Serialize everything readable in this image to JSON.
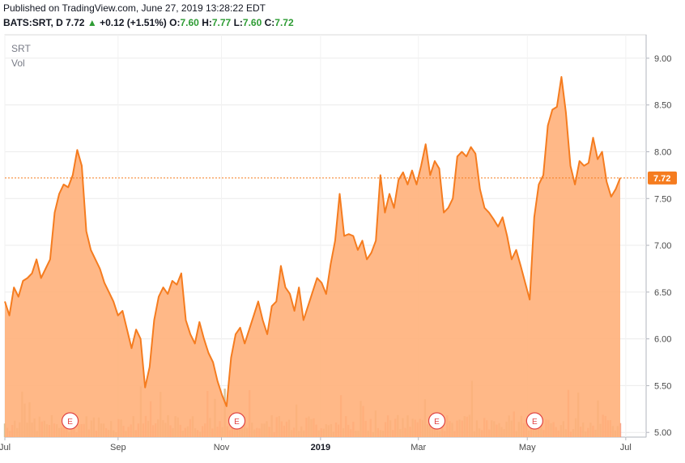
{
  "header": {
    "published": "Published on TradingView.com, June 27, 2019 13:28:22 EDT",
    "symbol": "BATS:SRT, D",
    "last": "7.72",
    "change": "+0.12 (+1.51%)",
    "o_label": "O:",
    "o": "7.60",
    "h_label": "H:",
    "h": "7.77",
    "l_label": "L:",
    "l": "7.60",
    "c_label": "C:",
    "c": "7.72"
  },
  "colors": {
    "line": "#f57c1f",
    "area": "#ffb07a",
    "up": "#2e9c34",
    "earnings": "#e04343",
    "vol_a": "#f6896b",
    "vol_b": "#c8b07c"
  },
  "chart_data": {
    "type": "area",
    "legend": [
      "SRT",
      "Vol"
    ],
    "last_value_label": "7.72",
    "last_value": 7.72,
    "ylim": [
      4.95,
      9.25
    ],
    "yticks": [
      "9.00",
      "8.50",
      "8.00",
      "7.50",
      "7.00",
      "6.50",
      "6.00",
      "5.50",
      "5.00"
    ],
    "yticks_values": [
      9.0,
      8.5,
      8.0,
      7.5,
      7.0,
      6.5,
      6.0,
      5.5,
      5.0
    ],
    "x_labels": [
      {
        "label": "Jul",
        "t": 0.0,
        "bold": false
      },
      {
        "label": "Sep",
        "t": 0.184,
        "bold": false
      },
      {
        "label": "Nov",
        "t": 0.352,
        "bold": false
      },
      {
        "label": "2019",
        "t": 0.513,
        "bold": true
      },
      {
        "label": "Mar",
        "t": 0.672,
        "bold": false
      },
      {
        "label": "May",
        "t": 0.849,
        "bold": false
      },
      {
        "label": "Jul",
        "t": 1.009,
        "bold": false
      }
    ],
    "earnings": [
      {
        "label": "E",
        "t": 0.106
      },
      {
        "label": "E",
        "t": 0.377
      },
      {
        "label": "E",
        "t": 0.702
      },
      {
        "label": "E",
        "t": 0.861
      }
    ],
    "price": [
      6.4,
      6.25,
      6.55,
      6.45,
      6.62,
      6.65,
      6.7,
      6.85,
      6.65,
      6.75,
      6.85,
      7.35,
      7.55,
      7.65,
      7.62,
      7.75,
      8.02,
      7.85,
      7.15,
      6.95,
      6.85,
      6.75,
      6.6,
      6.5,
      6.4,
      6.25,
      6.3,
      6.1,
      5.9,
      6.1,
      6.0,
      5.48,
      5.7,
      6.2,
      6.45,
      6.55,
      6.48,
      6.62,
      6.58,
      6.7,
      6.2,
      6.05,
      5.95,
      6.18,
      6.0,
      5.85,
      5.75,
      5.55,
      5.4,
      5.28,
      5.8,
      6.05,
      6.12,
      5.95,
      6.1,
      6.25,
      6.4,
      6.2,
      6.05,
      6.35,
      6.4,
      6.78,
      6.55,
      6.48,
      6.3,
      6.55,
      6.2,
      6.35,
      6.5,
      6.65,
      6.6,
      6.48,
      6.8,
      7.05,
      7.55,
      7.1,
      7.12,
      7.1,
      6.95,
      7.05,
      6.85,
      6.92,
      7.05,
      7.75,
      7.35,
      7.55,
      7.4,
      7.7,
      7.78,
      7.65,
      7.8,
      7.65,
      7.85,
      8.08,
      7.75,
      7.9,
      7.82,
      7.35,
      7.4,
      7.5,
      7.95,
      8.0,
      7.95,
      8.05,
      7.98,
      7.6,
      7.4,
      7.35,
      7.28,
      7.2,
      7.3,
      7.1,
      6.85,
      6.95,
      6.78,
      6.6,
      6.42,
      7.3,
      7.65,
      7.75,
      8.28,
      8.45,
      8.48,
      8.8,
      8.42,
      7.85,
      7.65,
      7.9,
      7.85,
      7.88,
      8.15,
      7.92,
      8.0,
      7.68,
      7.52,
      7.6,
      7.72
    ],
    "volume_scale": "relative"
  }
}
